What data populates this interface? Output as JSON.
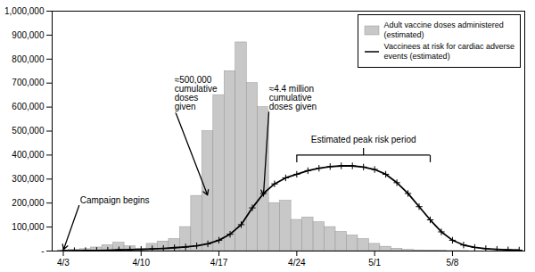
{
  "chart_data": {
    "type": "bar",
    "categories": [
      "4/3",
      null,
      null,
      null,
      null,
      null,
      null,
      "4/10",
      null,
      null,
      null,
      null,
      null,
      null,
      "4/17",
      null,
      null,
      null,
      null,
      null,
      null,
      "4/24",
      null,
      null,
      null,
      null,
      null,
      null,
      "5/1",
      null,
      null,
      null,
      null,
      null,
      null,
      "5/8",
      null,
      null,
      null,
      null,
      null,
      null
    ],
    "series": [
      {
        "name": "Adult vaccine doses administered\n(estimated)",
        "type": "bar",
        "color": "#c8c8c8",
        "values": [
          3000,
          5000,
          8000,
          15000,
          25000,
          35000,
          20000,
          10000,
          30000,
          40000,
          50000,
          100000,
          230000,
          500000,
          650000,
          750000,
          870000,
          700000,
          600000,
          200000,
          210000,
          130000,
          140000,
          120000,
          100000,
          80000,
          65000,
          50000,
          30000,
          18000,
          10000,
          5000,
          3000,
          2000,
          1000,
          500,
          300,
          0,
          0,
          0,
          0,
          0
        ]
      },
      {
        "name": "Vaccinees at risk for cardiac adverse\nevents (estimated)",
        "type": "line",
        "color": "#000000",
        "marker": "plus",
        "values": [
          1000,
          1500,
          2000,
          2500,
          3500,
          5000,
          6000,
          7000,
          9000,
          11000,
          14000,
          17000,
          22000,
          30000,
          45000,
          70000,
          110000,
          180000,
          240000,
          280000,
          305000,
          320000,
          335000,
          345000,
          352000,
          355000,
          355000,
          350000,
          340000,
          320000,
          285000,
          240000,
          185000,
          130000,
          80000,
          45000,
          25000,
          15000,
          10000,
          7000,
          5000,
          4000
        ]
      }
    ],
    "xlim": [
      -1.0,
      41.5
    ],
    "ylim": [
      0,
      1000000
    ],
    "yticks": [
      {
        "value": 0,
        "label": "-"
      },
      {
        "value": 100000,
        "label": "100,000"
      },
      {
        "value": 200000,
        "label": "200,000"
      },
      {
        "value": 300000,
        "label": "300,000"
      },
      {
        "value": 400000,
        "label": "400,000"
      },
      {
        "value": 500000,
        "label": "500,000"
      },
      {
        "value": 600000,
        "label": "600,000"
      },
      {
        "value": 700000,
        "label": "700,000"
      },
      {
        "value": 800000,
        "label": "800,000"
      },
      {
        "value": 900000,
        "label": "900,000"
      },
      {
        "value": 1000000,
        "label": "1,000,000"
      }
    ],
    "grid": false,
    "legend": "upper right",
    "annotations": [
      {
        "text": "≈500,000\ncumulative\ndoses\ngiven",
        "x": 13,
        "y": 230000,
        "text_x": 10.0,
        "text_y": 590000
      },
      {
        "text": "≈4.4 million\ncumulative\ndoses given",
        "x": 18,
        "y": 230000,
        "text_x": 18.5,
        "text_y": 590000
      },
      {
        "text": "Campaign begins",
        "x": 0,
        "y": 3000,
        "text_x": 1.5,
        "text_y": 200000
      },
      {
        "text": "Estimated peak risk period",
        "text_x": 27,
        "text_y": 450000,
        "bracket": [
          21,
          33
        ],
        "bracket_y": 400000
      }
    ]
  }
}
